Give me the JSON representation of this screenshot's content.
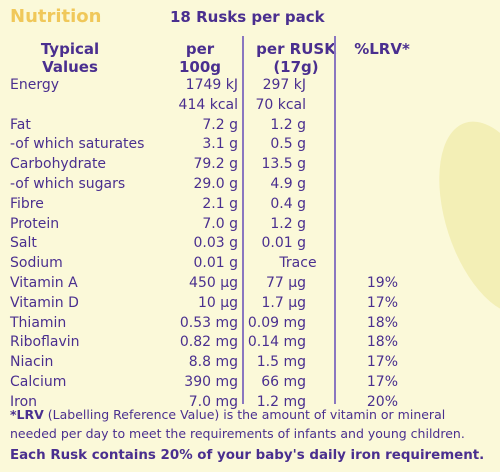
{
  "header": {
    "title": "Nutrition",
    "pack": "18 Rusks per pack"
  },
  "columns": {
    "label_line1": "Typical",
    "label_line2": "Values",
    "per100_line1": "per",
    "per100_line2": "100g",
    "rusk_line1": "per RUSK",
    "rusk_line2": "(17g)",
    "lrv": "%LRV*"
  },
  "rows": [
    {
      "label": "Energy",
      "per100": "1749 kJ",
      "rusk": "297 kJ",
      "lrv": ""
    },
    {
      "label": "",
      "per100": "414 kcal",
      "rusk": "70 kcal",
      "lrv": ""
    },
    {
      "label": "Fat",
      "per100": "7.2 g",
      "rusk": "1.2 g",
      "lrv": ""
    },
    {
      "label": "-of which saturates",
      "per100": "3.1 g",
      "rusk": "0.5 g",
      "lrv": ""
    },
    {
      "label": "Carbohydrate",
      "per100": "79.2 g",
      "rusk": "13.5 g",
      "lrv": ""
    },
    {
      "label": "-of which sugars",
      "per100": "29.0 g",
      "rusk": "4.9 g",
      "lrv": ""
    },
    {
      "label": "Fibre",
      "per100": "2.1 g",
      "rusk": "0.4 g",
      "lrv": ""
    },
    {
      "label": "Protein",
      "per100": "7.0 g",
      "rusk": "1.2 g",
      "lrv": ""
    },
    {
      "label": "Salt",
      "per100": "0.03 g",
      "rusk": "0.01 g",
      "lrv": ""
    },
    {
      "label": "Sodium",
      "per100": "0.01 g",
      "rusk": "Trace",
      "lrv": ""
    },
    {
      "label": "Vitamin A",
      "per100": "450 µg",
      "rusk": "77 µg",
      "lrv": "19%"
    },
    {
      "label": "Vitamin D",
      "per100": "10 µg",
      "rusk": "1.7 µg",
      "lrv": "17%"
    },
    {
      "label": "Thiamin",
      "per100": "0.53 mg",
      "rusk": "0.09 mg",
      "lrv": "18%"
    },
    {
      "label": "Riboflavin",
      "per100": "0.82 mg",
      "rusk": "0.14 mg",
      "lrv": "18%"
    },
    {
      "label": "Niacin",
      "per100": "8.8 mg",
      "rusk": "1.5 mg",
      "lrv": "17%"
    },
    {
      "label": "Calcium",
      "per100": "390 mg",
      "rusk": "66 mg",
      "lrv": "17%"
    },
    {
      "label": "Iron",
      "per100": "7.0 mg",
      "rusk": "1.2 mg",
      "lrv": "20%"
    }
  ],
  "footnote": {
    "lrv_abbrev": "*LRV",
    "text": " (Labelling Reference Value) is the amount of vitamin or mineral needed per day to meet the requirements of infants and young children."
  },
  "iron_note": "Each Rusk contains 20% of your baby's daily iron requirement."
}
